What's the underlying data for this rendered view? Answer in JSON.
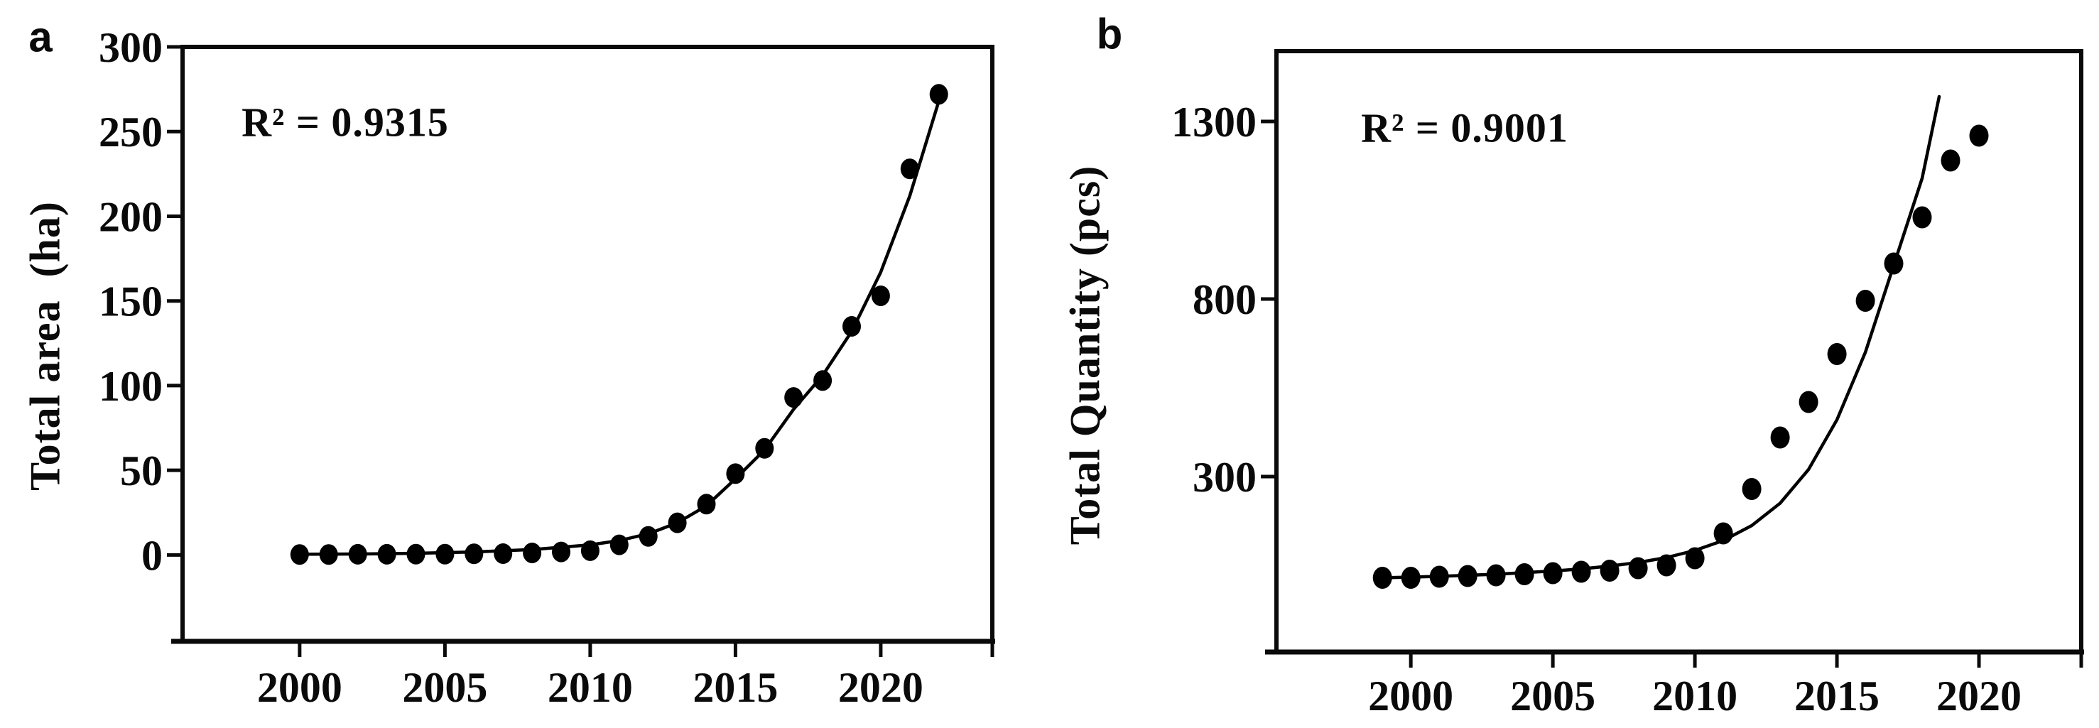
{
  "figure": {
    "panels": [
      {
        "label": "a",
        "r_squared": "R² = 0.9315",
        "ylabel": "Total area  (ha)"
      },
      {
        "label": "b",
        "r_squared": "R² = 0.9001",
        "ylabel": "Total Quantity (pcs)"
      }
    ]
  },
  "chart_data": [
    {
      "type": "scatter",
      "title": "",
      "xlabel": "",
      "ylabel": "Total area (ha)",
      "annotation": "R² = 0.9315",
      "legend": "none",
      "grid": false,
      "marker_color": "#000000",
      "line_color": "#000000",
      "x": [
        2000,
        2001,
        2002,
        2003,
        2004,
        2005,
        2006,
        2007,
        2008,
        2009,
        2010,
        2011,
        2012,
        2013,
        2014,
        2015,
        2016,
        2017,
        2018,
        2019,
        2020,
        2021,
        2022
      ],
      "values": [
        0.3,
        0.3,
        0.4,
        0.4,
        0.5,
        0.5,
        0.7,
        0.8,
        1.2,
        1.8,
        2.5,
        6,
        11,
        19,
        30,
        48,
        63,
        93,
        103,
        135,
        153,
        228,
        272
      ],
      "fit_line": {
        "type": "exponential",
        "points": [
          [
            2000,
            0.4
          ],
          [
            2002,
            0.6
          ],
          [
            2004,
            1
          ],
          [
            2006,
            1.8
          ],
          [
            2008,
            3.2
          ],
          [
            2010,
            6
          ],
          [
            2011,
            8.5
          ],
          [
            2012,
            12.5
          ],
          [
            2013,
            19
          ],
          [
            2014,
            29
          ],
          [
            2015,
            45
          ],
          [
            2016,
            62
          ],
          [
            2017,
            86
          ],
          [
            2018,
            106
          ],
          [
            2019,
            132
          ],
          [
            2020,
            167
          ],
          [
            2021,
            212
          ],
          [
            2022,
            268
          ],
          [
            2022.2,
            272
          ]
        ]
      },
      "x_ticks": [
        2000,
        2005,
        2010,
        2015,
        2020
      ],
      "y_ticks": [
        0,
        50,
        100,
        150,
        200,
        250,
        300
      ],
      "xlim": [
        1995.97,
        2023.84
      ],
      "ylim": [
        -51,
        300
      ]
    },
    {
      "type": "scatter",
      "title": "",
      "xlabel": "",
      "ylabel": "Total Quantity (pcs)",
      "annotation": "R² = 0.9001",
      "legend": "none",
      "grid": false,
      "marker_color": "#000000",
      "line_color": "#000000",
      "x": [
        1999,
        2000,
        2001,
        2002,
        2003,
        2004,
        2005,
        2006,
        2007,
        2008,
        2009,
        2010,
        2011,
        2012,
        2013,
        2014,
        2015,
        2016,
        2017,
        2018,
        2019,
        2020
      ],
      "values": [
        15,
        15,
        18,
        20,
        22,
        25,
        28,
        32,
        35,
        42,
        50,
        70,
        140,
        265,
        410,
        510,
        645,
        795,
        900,
        1030,
        1190,
        1260
      ],
      "fit_line": {
        "type": "exponential",
        "points": [
          [
            1999,
            15
          ],
          [
            2001,
            19
          ],
          [
            2003,
            25
          ],
          [
            2005,
            34
          ],
          [
            2006,
            40
          ],
          [
            2007,
            48
          ],
          [
            2008,
            58
          ],
          [
            2009,
            72
          ],
          [
            2010,
            92
          ],
          [
            2011,
            120
          ],
          [
            2012,
            162
          ],
          [
            2013,
            225
          ],
          [
            2014,
            320
          ],
          [
            2015,
            460
          ],
          [
            2016,
            650
          ],
          [
            2017,
            895
          ],
          [
            2018,
            1140
          ],
          [
            2018.6,
            1370
          ]
        ]
      },
      "x_ticks": [
        2000,
        2005,
        2010,
        2015,
        2020
      ],
      "y_ticks": [
        300,
        800,
        1300
      ],
      "xlim": [
        1995.27,
        2023.6
      ],
      "ylim": [
        -194,
        1498
      ]
    }
  ]
}
